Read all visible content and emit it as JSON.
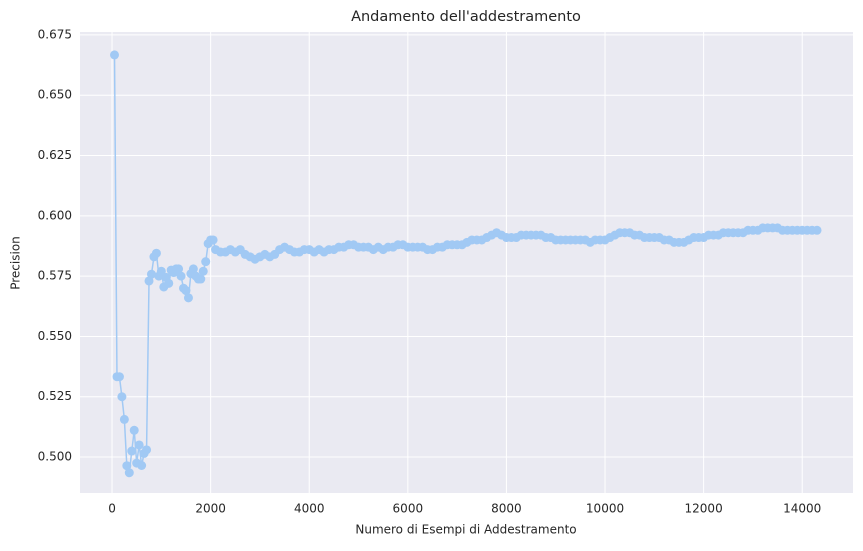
{
  "chart_data": {
    "type": "line",
    "title": "Andamento dell'addestramento",
    "x_label": "Numero di Esempi di Addestramento",
    "y_label": "Precision",
    "x": [
      50,
      100,
      150,
      200,
      250,
      300,
      350,
      400,
      450,
      500,
      550,
      600,
      650,
      700,
      750,
      800,
      850,
      900,
      950,
      1000,
      1050,
      1100,
      1150,
      1200,
      1250,
      1300,
      1350,
      1400,
      1450,
      1500,
      1550,
      1600,
      1650,
      1700,
      1750,
      1800,
      1850,
      1900,
      1950,
      2000,
      2050,
      2100,
      2200,
      2300,
      2400,
      2500,
      2600,
      2700,
      2800,
      2900,
      3000,
      3100,
      3200,
      3300,
      3400,
      3500,
      3600,
      3700,
      3800,
      3900,
      4000,
      4100,
      4200,
      4300,
      4400,
      4500,
      4600,
      4700,
      4800,
      4900,
      5000,
      5100,
      5200,
      5300,
      5400,
      5500,
      5600,
      5700,
      5800,
      5900,
      6000,
      6100,
      6200,
      6300,
      6400,
      6500,
      6600,
      6700,
      6800,
      6900,
      7000,
      7100,
      7200,
      7300,
      7400,
      7500,
      7600,
      7700,
      7800,
      7900,
      8000,
      8100,
      8200,
      8300,
      8400,
      8500,
      8600,
      8700,
      8800,
      8900,
      9000,
      9100,
      9200,
      9300,
      9400,
      9500,
      9600,
      9700,
      9800,
      9900,
      10000,
      10100,
      10200,
      10300,
      10400,
      10500,
      10600,
      10700,
      10800,
      10900,
      11000,
      11100,
      11200,
      11300,
      11400,
      11500,
      11600,
      11700,
      11800,
      11900,
      12000,
      12100,
      12200,
      12300,
      12400,
      12500,
      12600,
      12700,
      12800,
      12900,
      13000,
      13100,
      13200,
      13300,
      13400,
      13500,
      13600,
      13700,
      13800,
      13900,
      14000,
      14100,
      14200,
      14300
    ],
    "series": [
      {
        "name": "Precision",
        "color": "#a1c9f4",
        "values": [
          0.6667,
          0.5333,
          0.5333,
          0.525,
          0.5156,
          0.4964,
          0.4935,
          0.5025,
          0.5111,
          0.4975,
          0.505,
          0.4965,
          0.5015,
          0.503,
          0.573,
          0.5758,
          0.583,
          0.5845,
          0.575,
          0.577,
          0.5705,
          0.5745,
          0.572,
          0.5775,
          0.5765,
          0.578,
          0.578,
          0.575,
          0.57,
          0.569,
          0.566,
          0.576,
          0.578,
          0.575,
          0.5738,
          0.5738,
          0.577,
          0.581,
          0.5885,
          0.59,
          0.59,
          0.586,
          0.585,
          0.585,
          0.586,
          0.585,
          0.586,
          0.584,
          0.583,
          0.582,
          0.583,
          0.584,
          0.583,
          0.584,
          0.586,
          0.587,
          0.586,
          0.585,
          0.585,
          0.586,
          0.586,
          0.585,
          0.586,
          0.585,
          0.586,
          0.586,
          0.587,
          0.587,
          0.588,
          0.588,
          0.587,
          0.587,
          0.587,
          0.586,
          0.587,
          0.586,
          0.587,
          0.587,
          0.588,
          0.588,
          0.587,
          0.587,
          0.587,
          0.587,
          0.586,
          0.586,
          0.587,
          0.587,
          0.588,
          0.588,
          0.588,
          0.588,
          0.589,
          0.59,
          0.59,
          0.59,
          0.591,
          0.592,
          0.593,
          0.592,
          0.591,
          0.591,
          0.591,
          0.592,
          0.592,
          0.592,
          0.592,
          0.592,
          0.591,
          0.591,
          0.59,
          0.59,
          0.59,
          0.59,
          0.59,
          0.59,
          0.59,
          0.589,
          0.59,
          0.59,
          0.59,
          0.591,
          0.592,
          0.593,
          0.593,
          0.593,
          0.592,
          0.592,
          0.591,
          0.591,
          0.591,
          0.591,
          0.59,
          0.59,
          0.589,
          0.589,
          0.589,
          0.59,
          0.591,
          0.591,
          0.591,
          0.592,
          0.592,
          0.592,
          0.593,
          0.593,
          0.593,
          0.593,
          0.593,
          0.594,
          0.594,
          0.594,
          0.595,
          0.595,
          0.595,
          0.595,
          0.594,
          0.594,
          0.594,
          0.594,
          0.594,
          0.594,
          0.594,
          0.594
        ]
      }
    ],
    "xlim": [
      -650,
      15030
    ],
    "ylim": [
      0.4851,
      0.6762
    ],
    "xticks": [
      0,
      2000,
      4000,
      6000,
      8000,
      10000,
      12000,
      14000
    ],
    "yticks": [
      {
        "value": 0.5,
        "label": "0.500"
      },
      0.525,
      {
        "value": 0.55,
        "label": "0.550"
      },
      0.575,
      {
        "value": 0.6,
        "label": "0.600"
      },
      0.625,
      {
        "value": 0.65,
        "label": "0.650"
      },
      0.675
    ],
    "grid": true
  }
}
